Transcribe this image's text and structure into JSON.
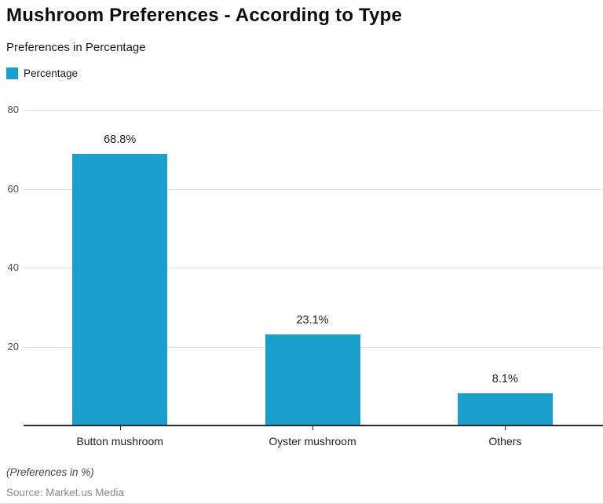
{
  "header": {
    "title": "Mushroom Preferences - According to Type",
    "subtitle": "Preferences in Percentage",
    "legend": {
      "label": "Percentage"
    }
  },
  "chart_data": {
    "type": "bar",
    "title": "Mushroom Preferences - According to Type",
    "subtitle": "Preferences in Percentage",
    "series_name": "Percentage",
    "categories": [
      "Button mushroom",
      "Oyster mushroom",
      "Others"
    ],
    "values": [
      68.8,
      23.1,
      8.1
    ],
    "value_labels": [
      "68.8%",
      "23.1%",
      "8.1%"
    ],
    "xlabel": "",
    "ylabel": "",
    "ylim": [
      0,
      84
    ],
    "yticks": [
      20,
      40,
      60,
      80
    ],
    "grid": true,
    "legend_position": "top-left",
    "bar_color": "#1a9fcd",
    "axis_color": "#2b2b2b",
    "grid_color": "#dedede"
  },
  "footer": {
    "note": "(Preferences in %)",
    "source": "Source: Market.us Media"
  }
}
